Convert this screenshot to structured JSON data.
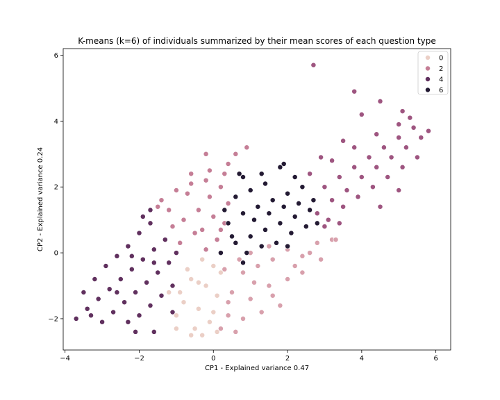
{
  "chart_data": {
    "type": "scatter",
    "title": "K-means (k=6) of individuals summarized by their mean scores of each question type",
    "xlabel": "CP1 - Explained variance 0.47",
    "ylabel": "CP2 - Explained variance 0.24",
    "xlim": [
      -4.05,
      6.4
    ],
    "ylim": [
      -2.95,
      6.2
    ],
    "xticks": [
      -4,
      -2,
      0,
      2,
      4,
      6
    ],
    "yticks": [
      -2,
      0,
      2,
      4,
      6
    ],
    "xtick_labels": [
      "−4",
      "−2",
      "0",
      "2",
      "4",
      "6"
    ],
    "ytick_labels": [
      "−2",
      "0",
      "2",
      "4",
      "6"
    ],
    "grid": false,
    "legend": {
      "placement": "top-right",
      "entries": [
        {
          "label": "0",
          "color": "#ebcfc6"
        },
        {
          "label": "2",
          "color": "#c57e96"
        },
        {
          "label": "4",
          "color": "#60305e"
        },
        {
          "label": "6",
          "color": "#231a33"
        }
      ]
    },
    "series": [
      {
        "cluster": 0,
        "color": "#ebcfc6",
        "points": [
          [
            -1.2,
            -1.2
          ],
          [
            -0.8,
            -1.5
          ],
          [
            -0.4,
            -1.7
          ],
          [
            -0.2,
            -1.0
          ],
          [
            0.0,
            -0.4
          ],
          [
            -0.3,
            -0.2
          ],
          [
            -0.6,
            -0.8
          ],
          [
            -1.0,
            -1.9
          ],
          [
            -0.5,
            -2.3
          ],
          [
            0.1,
            -1.3
          ],
          [
            0.2,
            -0.6
          ],
          [
            -0.1,
            -2.1
          ],
          [
            -0.7,
            -0.5
          ],
          [
            -0.9,
            -1.2
          ],
          [
            0.0,
            -1.8
          ],
          [
            -0.4,
            -0.9
          ],
          [
            -1.0,
            -2.3
          ],
          [
            -0.6,
            -2.5
          ],
          [
            -0.3,
            -2.5
          ],
          [
            0.1,
            -2.4
          ]
        ]
      },
      {
        "cluster": 1,
        "color": "#d8a0ac",
        "points": [
          [
            0.3,
            -0.5
          ],
          [
            0.8,
            -0.6
          ],
          [
            1.2,
            -0.4
          ],
          [
            1.6,
            -0.2
          ],
          [
            2.0,
            0.1
          ],
          [
            2.4,
            -0.1
          ],
          [
            2.8,
            0.3
          ],
          [
            3.2,
            0.4
          ],
          [
            0.5,
            -1.2
          ],
          [
            1.0,
            -1.4
          ],
          [
            1.5,
            -1.0
          ],
          [
            2.0,
            -0.8
          ],
          [
            2.4,
            -0.6
          ],
          [
            0.4,
            -1.9
          ],
          [
            0.8,
            -2.0
          ],
          [
            1.3,
            -1.8
          ],
          [
            1.8,
            -1.6
          ],
          [
            0.7,
            -0.2
          ],
          [
            1.1,
            -0.9
          ],
          [
            1.6,
            -1.3
          ],
          [
            2.2,
            -0.4
          ],
          [
            2.6,
            0.0
          ],
          [
            0.2,
            -2.3
          ],
          [
            0.6,
            -2.4
          ],
          [
            0.4,
            -1.5
          ],
          [
            1.0,
            0.0
          ],
          [
            1.5,
            0.2
          ],
          [
            2.9,
            -0.2
          ],
          [
            3.3,
            0.4
          ]
        ]
      },
      {
        "cluster": 2,
        "color": "#c57e96",
        "points": [
          [
            -1.4,
            1.6
          ],
          [
            -1.0,
            1.9
          ],
          [
            -0.6,
            2.1
          ],
          [
            -0.2,
            2.2
          ],
          [
            0.2,
            2.0
          ],
          [
            0.4,
            1.5
          ],
          [
            0.3,
            0.9
          ],
          [
            0.1,
            0.4
          ],
          [
            -0.2,
            0.1
          ],
          [
            -0.5,
            0.6
          ],
          [
            -0.8,
            1.0
          ],
          [
            -1.2,
            1.3
          ],
          [
            -1.5,
            1.4
          ],
          [
            -0.9,
            0.3
          ],
          [
            -0.4,
            1.3
          ],
          [
            -0.1,
            1.7
          ],
          [
            0.2,
            0.7
          ],
          [
            -0.7,
            1.8
          ],
          [
            -1.1,
            0.8
          ],
          [
            -0.3,
            0.7
          ],
          [
            0.0,
            1.1
          ],
          [
            -0.6,
            2.4
          ],
          [
            -0.1,
            2.5
          ],
          [
            0.3,
            2.4
          ],
          [
            0.9,
            3.2
          ],
          [
            0.6,
            3.0
          ],
          [
            -0.2,
            3.0
          ],
          [
            0.4,
            2.7
          ]
        ]
      },
      {
        "cluster": 3,
        "color": "#9e5580",
        "points": [
          [
            2.8,
            1.2
          ],
          [
            3.2,
            1.6
          ],
          [
            3.6,
            1.9
          ],
          [
            4.0,
            2.3
          ],
          [
            4.4,
            2.6
          ],
          [
            4.8,
            2.9
          ],
          [
            5.2,
            3.2
          ],
          [
            5.6,
            3.5
          ],
          [
            5.8,
            3.7
          ],
          [
            3.0,
            2.0
          ],
          [
            3.4,
            2.3
          ],
          [
            3.8,
            2.6
          ],
          [
            4.2,
            2.9
          ],
          [
            4.6,
            3.2
          ],
          [
            5.0,
            3.5
          ],
          [
            5.4,
            3.8
          ],
          [
            3.1,
            1.0
          ],
          [
            3.5,
            1.4
          ],
          [
            3.9,
            1.7
          ],
          [
            4.3,
            2.0
          ],
          [
            4.7,
            2.3
          ],
          [
            5.1,
            2.6
          ],
          [
            5.5,
            2.9
          ],
          [
            2.6,
            2.4
          ],
          [
            3.2,
            2.8
          ],
          [
            3.8,
            3.2
          ],
          [
            4.4,
            3.6
          ],
          [
            5.0,
            3.9
          ],
          [
            5.3,
            4.1
          ],
          [
            2.7,
            5.7
          ],
          [
            3.8,
            4.9
          ],
          [
            4.5,
            4.6
          ],
          [
            4.0,
            4.2
          ],
          [
            5.1,
            4.3
          ],
          [
            3.5,
            3.4
          ],
          [
            4.5,
            1.4
          ],
          [
            5.0,
            1.9
          ],
          [
            3.4,
            0.9
          ],
          [
            3.0,
            0.8
          ],
          [
            2.9,
            2.9
          ]
        ]
      },
      {
        "cluster": 4,
        "color": "#60305e",
        "points": [
          [
            -3.7,
            -2.0
          ],
          [
            -3.4,
            -1.7
          ],
          [
            -3.1,
            -1.4
          ],
          [
            -2.8,
            -1.1
          ],
          [
            -2.5,
            -0.8
          ],
          [
            -2.2,
            -0.5
          ],
          [
            -1.9,
            -0.2
          ],
          [
            -1.6,
            0.1
          ],
          [
            -1.3,
            0.4
          ],
          [
            -1.7,
            0.9
          ],
          [
            -2.0,
            0.6
          ],
          [
            -2.3,
            0.2
          ],
          [
            -2.6,
            -0.1
          ],
          [
            -2.9,
            -0.4
          ],
          [
            -3.2,
            -0.8
          ],
          [
            -3.5,
            -1.2
          ],
          [
            -3.3,
            -1.9
          ],
          [
            -3.0,
            -2.1
          ],
          [
            -2.7,
            -1.8
          ],
          [
            -2.4,
            -1.5
          ],
          [
            -2.1,
            -1.2
          ],
          [
            -1.8,
            -0.9
          ],
          [
            -1.5,
            -0.6
          ],
          [
            -1.2,
            -0.3
          ],
          [
            -1.0,
            0.0
          ],
          [
            -1.4,
            -1.3
          ],
          [
            -1.1,
            -1.0
          ],
          [
            -1.7,
            -1.6
          ],
          [
            -2.0,
            -1.9
          ],
          [
            -2.3,
            -2.1
          ],
          [
            -1.7,
            1.3
          ],
          [
            -1.9,
            1.1
          ],
          [
            -2.1,
            -2.4
          ],
          [
            -1.6,
            -2.4
          ],
          [
            -1.1,
            -1.8
          ],
          [
            -2.6,
            -1.2
          ],
          [
            -2.2,
            -0.1
          ],
          [
            -1.6,
            -0.3
          ]
        ]
      },
      {
        "cluster": 5,
        "color": "#231a33",
        "points": [
          [
            0.2,
            0.0
          ],
          [
            0.6,
            0.3
          ],
          [
            1.0,
            0.5
          ],
          [
            1.4,
            0.7
          ],
          [
            1.8,
            0.9
          ],
          [
            2.2,
            1.1
          ],
          [
            2.6,
            1.3
          ],
          [
            0.4,
            0.9
          ],
          [
            0.8,
            1.2
          ],
          [
            1.2,
            1.4
          ],
          [
            1.6,
            1.6
          ],
          [
            2.0,
            1.8
          ],
          [
            2.4,
            2.0
          ],
          [
            2.7,
            1.6
          ],
          [
            0.6,
            1.7
          ],
          [
            1.0,
            1.9
          ],
          [
            1.4,
            2.1
          ],
          [
            0.8,
            2.3
          ],
          [
            1.3,
            2.4
          ],
          [
            1.8,
            2.6
          ],
          [
            2.2,
            2.3
          ],
          [
            0.5,
            0.5
          ],
          [
            0.9,
            0.0
          ],
          [
            1.3,
            0.2
          ],
          [
            1.7,
            0.3
          ],
          [
            2.1,
            0.6
          ],
          [
            2.5,
            0.8
          ],
          [
            2.8,
            0.9
          ],
          [
            0.3,
            1.3
          ],
          [
            0.7,
            2.4
          ],
          [
            1.9,
            2.7
          ],
          [
            0.8,
            -0.3
          ],
          [
            1.1,
            1.0
          ],
          [
            1.5,
            1.2
          ],
          [
            1.9,
            1.4
          ],
          [
            2.3,
            1.5
          ],
          [
            2.0,
            0.2
          ]
        ]
      }
    ]
  }
}
